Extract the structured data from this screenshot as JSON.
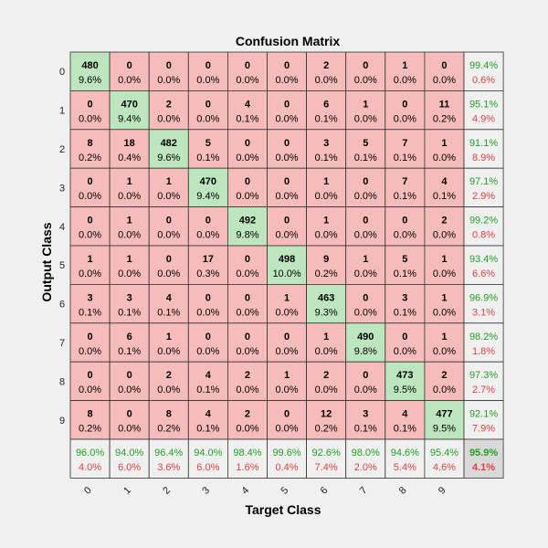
{
  "chart_data": {
    "type": "heatmap",
    "title": "Confusion Matrix",
    "xlabel": "Target Class",
    "ylabel": "Output Class",
    "classes": [
      "0",
      "1",
      "2",
      "3",
      "4",
      "5",
      "6",
      "7",
      "8",
      "9"
    ],
    "matrix": [
      [
        480,
        0,
        0,
        0,
        0,
        0,
        2,
        0,
        1,
        0
      ],
      [
        0,
        470,
        2,
        0,
        4,
        0,
        6,
        1,
        0,
        11
      ],
      [
        8,
        18,
        482,
        5,
        0,
        0,
        3,
        5,
        7,
        1
      ],
      [
        0,
        1,
        1,
        470,
        0,
        0,
        1,
        0,
        7,
        4
      ],
      [
        0,
        1,
        0,
        0,
        492,
        0,
        1,
        0,
        0,
        2
      ],
      [
        1,
        1,
        0,
        17,
        0,
        498,
        9,
        1,
        5,
        1
      ],
      [
        3,
        3,
        4,
        0,
        0,
        1,
        463,
        0,
        3,
        1
      ],
      [
        0,
        6,
        1,
        0,
        0,
        0,
        1,
        490,
        0,
        1
      ],
      [
        0,
        0,
        2,
        4,
        2,
        1,
        2,
        0,
        473,
        2
      ],
      [
        8,
        0,
        8,
        4,
        2,
        0,
        12,
        3,
        4,
        477
      ]
    ],
    "matrix_pct": [
      [
        "9.6%",
        "0.0%",
        "0.0%",
        "0.0%",
        "0.0%",
        "0.0%",
        "0.0%",
        "0.0%",
        "0.0%",
        "0.0%"
      ],
      [
        "0.0%",
        "9.4%",
        "0.0%",
        "0.0%",
        "0.1%",
        "0.0%",
        "0.1%",
        "0.0%",
        "0.0%",
        "0.2%"
      ],
      [
        "0.2%",
        "0.4%",
        "9.6%",
        "0.1%",
        "0.0%",
        "0.0%",
        "0.1%",
        "0.1%",
        "0.1%",
        "0.0%"
      ],
      [
        "0.0%",
        "0.0%",
        "0.0%",
        "9.4%",
        "0.0%",
        "0.0%",
        "0.0%",
        "0.0%",
        "0.1%",
        "0.1%"
      ],
      [
        "0.0%",
        "0.0%",
        "0.0%",
        "0.0%",
        "9.8%",
        "0.0%",
        "0.0%",
        "0.0%",
        "0.0%",
        "0.0%"
      ],
      [
        "0.0%",
        "0.0%",
        "0.0%",
        "0.3%",
        "0.0%",
        "10.0%",
        "0.2%",
        "0.0%",
        "0.1%",
        "0.0%"
      ],
      [
        "0.1%",
        "0.1%",
        "0.1%",
        "0.0%",
        "0.0%",
        "0.0%",
        "9.3%",
        "0.0%",
        "0.1%",
        "0.0%"
      ],
      [
        "0.0%",
        "0.1%",
        "0.0%",
        "0.0%",
        "0.0%",
        "0.0%",
        "0.0%",
        "9.8%",
        "0.0%",
        "0.0%"
      ],
      [
        "0.0%",
        "0.0%",
        "0.0%",
        "0.1%",
        "0.0%",
        "0.0%",
        "0.0%",
        "0.0%",
        "9.5%",
        "0.0%"
      ],
      [
        "0.2%",
        "0.0%",
        "0.2%",
        "0.1%",
        "0.0%",
        "0.0%",
        "0.2%",
        "0.1%",
        "0.1%",
        "9.5%"
      ]
    ],
    "row_summary": [
      [
        "99.4%",
        "0.6%"
      ],
      [
        "95.1%",
        "4.9%"
      ],
      [
        "91.1%",
        "8.9%"
      ],
      [
        "97.1%",
        "2.9%"
      ],
      [
        "99.2%",
        "0.8%"
      ],
      [
        "93.4%",
        "6.6%"
      ],
      [
        "96.9%",
        "3.1%"
      ],
      [
        "98.2%",
        "1.8%"
      ],
      [
        "97.3%",
        "2.7%"
      ],
      [
        "92.1%",
        "7.9%"
      ]
    ],
    "col_summary": [
      [
        "96.0%",
        "4.0%"
      ],
      [
        "94.0%",
        "6.0%"
      ],
      [
        "96.4%",
        "3.6%"
      ],
      [
        "94.0%",
        "6.0%"
      ],
      [
        "98.4%",
        "1.6%"
      ],
      [
        "99.6%",
        "0.4%"
      ],
      [
        "92.6%",
        "7.4%"
      ],
      [
        "98.0%",
        "2.0%"
      ],
      [
        "94.6%",
        "5.4%"
      ],
      [
        "95.4%",
        "4.6%"
      ]
    ],
    "overall": [
      "95.9%",
      "4.1%"
    ],
    "colors": {
      "diag": "#bde6be",
      "offdiag": "#f6bcbb",
      "summary": "#f0f0f0",
      "overall": "#d9d9d9",
      "green": "#22a022",
      "red": "#e04040"
    }
  }
}
